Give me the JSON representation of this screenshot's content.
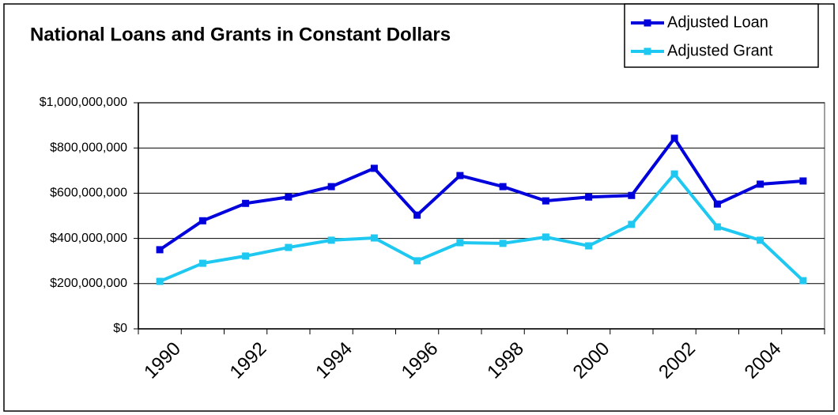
{
  "chart_data": {
    "type": "line",
    "title": "National Loans and Grants in Constant Dollars",
    "categories": [
      "1990",
      null,
      "1992",
      null,
      "1994",
      null,
      "1996",
      null,
      "1998",
      null,
      "2000",
      null,
      "2002",
      null,
      "2004",
      null
    ],
    "series": [
      {
        "name": "Adjusted Loan",
        "color": "#0000dd",
        "values": [
          350000000,
          478000000,
          555000000,
          583000000,
          629000000,
          710000000,
          503000000,
          678000000,
          629000000,
          566000000,
          583000000,
          590000000,
          843000000,
          552000000,
          640000000,
          654000000
        ]
      },
      {
        "name": "Adjusted Grant",
        "color": "#1ec8f0",
        "values": [
          210000000,
          290000000,
          322000000,
          360000000,
          392000000,
          402000000,
          301000000,
          381000000,
          378000000,
          406000000,
          367000000,
          462000000,
          685000000,
          451000000,
          392000000,
          213000000
        ]
      }
    ],
    "ylim": [
      0,
      1000000000
    ],
    "yticks": [
      {
        "value": 0,
        "label": "$0"
      },
      {
        "value": 200000000,
        "label": "$200,000,000"
      },
      {
        "value": 400000000,
        "label": "$400,000,000"
      },
      {
        "value": 600000000,
        "label": "$600,000,000"
      },
      {
        "value": 800000000,
        "label": "$800,000,000"
      },
      {
        "value": 1000000000,
        "label": "$1,000,000,000"
      }
    ],
    "grid": true,
    "legend": "top-right"
  }
}
